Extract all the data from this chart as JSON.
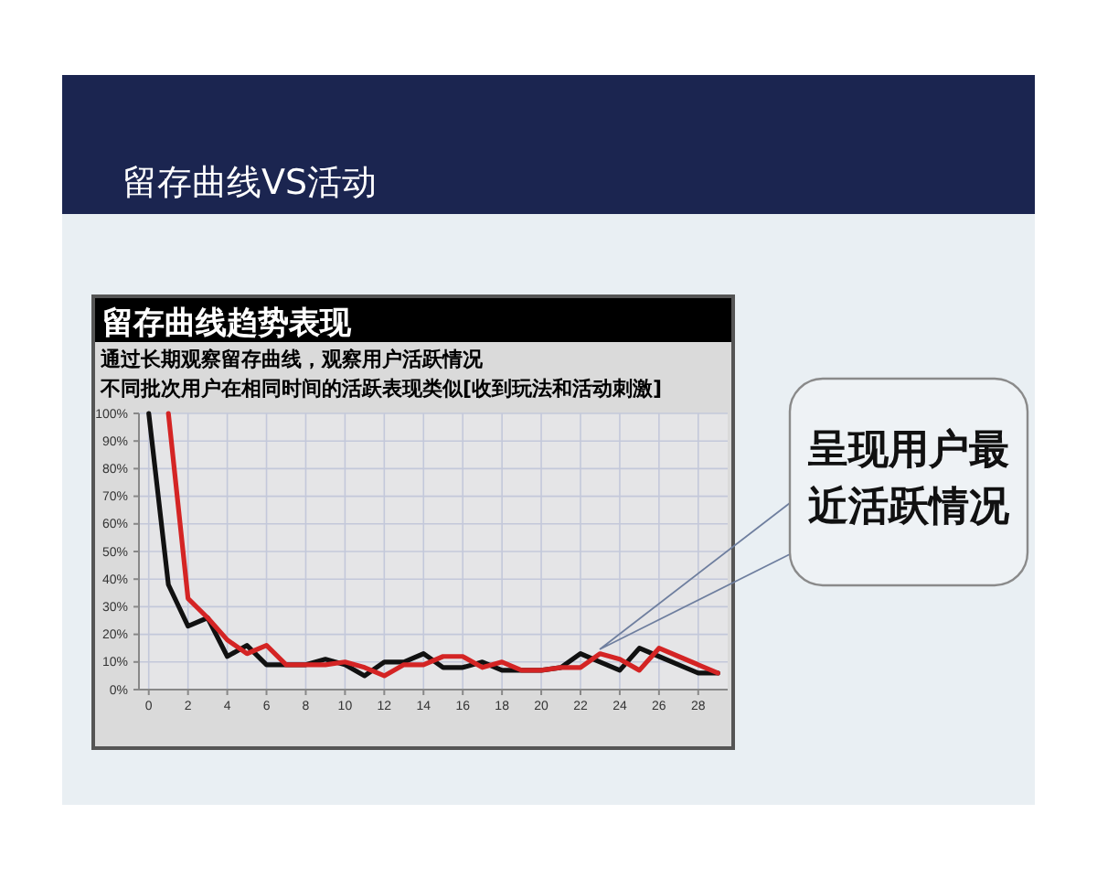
{
  "chart_data": {
    "type": "line",
    "title": "留存曲线趋势表现",
    "subtitle": "通过长期观察留存曲线，观察用户活跃情况",
    "annotations": [
      "留存曲线VS活动",
      "不同批次用户在相同时间的活跃表现类似[收到玩法和活动刺激]",
      "呈现用户最近活跃情况"
    ],
    "series": [
      {
        "color": "#111111",
        "x": [
          0,
          1,
          2,
          3,
          4,
          5,
          6,
          7,
          8,
          9,
          10,
          11,
          12,
          13,
          14,
          15,
          16,
          17,
          18,
          19,
          20,
          21,
          22,
          23,
          24,
          25,
          26,
          27,
          28,
          29
        ],
        "values": [
          100,
          38,
          23,
          26,
          12,
          16,
          9,
          9,
          9,
          11,
          9,
          5,
          10,
          10,
          13,
          8,
          8,
          10,
          7,
          7,
          7,
          8,
          13,
          10,
          7,
          15,
          12,
          9,
          6,
          6
        ]
      },
      {
        "color": "#d42424",
        "x": [
          1,
          2,
          3,
          4,
          5,
          6,
          7,
          8,
          9,
          10,
          11,
          12,
          13,
          14,
          15,
          16,
          17,
          18,
          19,
          20,
          21,
          22,
          23,
          24,
          25,
          26,
          27,
          28,
          29
        ],
        "values": [
          100,
          33,
          26,
          18,
          13,
          16,
          9,
          9,
          9,
          10,
          8,
          5,
          9,
          9,
          12,
          12,
          8,
          10,
          7,
          7,
          8,
          8,
          13,
          11,
          7,
          15,
          12,
          9,
          6
        ]
      }
    ],
    "xlim": [
      -0.5,
      29.5
    ],
    "ylim": [
      0,
      100
    ],
    "xticks": [
      0,
      2,
      4,
      6,
      8,
      10,
      12,
      14,
      16,
      18,
      20,
      22,
      24,
      26,
      28
    ],
    "yticks": [
      {
        "value": 0,
        "label": "0%"
      },
      {
        "value": 10,
        "label": "10%"
      },
      {
        "value": 20,
        "label": "20%"
      },
      {
        "value": 30,
        "label": "30%"
      },
      {
        "value": 40,
        "label": "40%"
      },
      {
        "value": 50,
        "label": "50%"
      },
      {
        "value": 60,
        "label": "60%"
      },
      {
        "value": 70,
        "label": "70%"
      },
      {
        "value": 80,
        "label": "80%"
      },
      {
        "value": 90,
        "label": "90%"
      },
      {
        "value": 100,
        "label": "100%"
      }
    ],
    "grid": true
  }
}
